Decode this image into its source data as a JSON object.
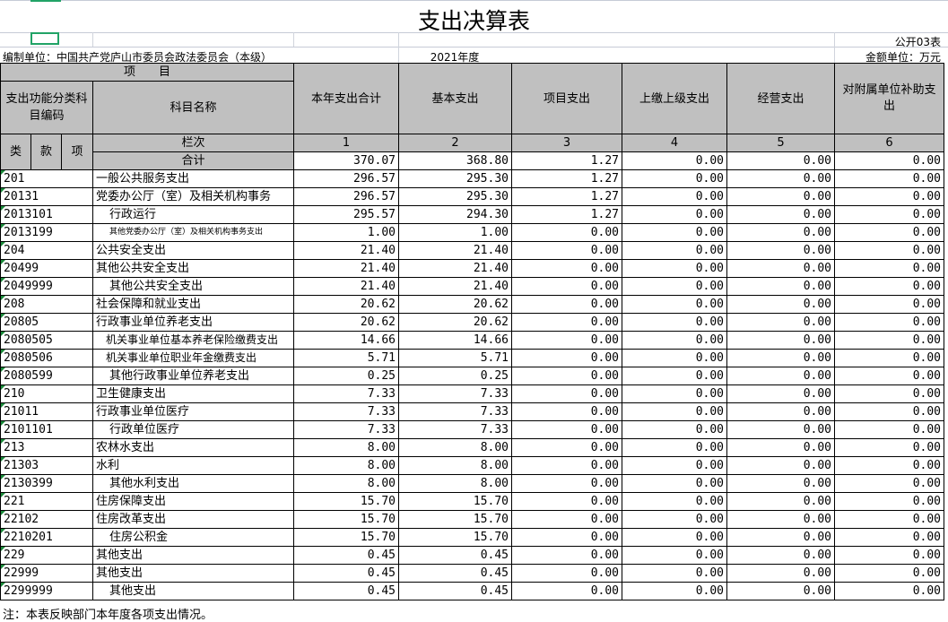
{
  "title": "支出决算表",
  "form_no": "公开03表",
  "unit": "编制单位：中国共产党庐山市委员会政法委员会（本级）",
  "year": "2021年度",
  "currency": "金额单位：万元",
  "headers": {
    "item": "项　　目",
    "code": "支出功能分类科目编码",
    "name": "科目名称",
    "cols": [
      "本年支出合计",
      "基本支出",
      "项目支出",
      "上缴上级支出",
      "经营支出",
      "对附属单位补助支出"
    ],
    "lei": "类",
    "kuan": "款",
    "xiang": "项",
    "lanci": "栏次",
    "col_nums": [
      "1",
      "2",
      "3",
      "4",
      "5",
      "6"
    ],
    "total": "合计"
  },
  "total_values": [
    "370.07",
    "368.80",
    "1.27",
    "0.00",
    "0.00",
    "0.00"
  ],
  "rows": [
    {
      "code": "201",
      "name": "一般公共服务支出",
      "indent": 0,
      "v": [
        "296.57",
        "295.30",
        "1.27",
        "0.00",
        "0.00",
        "0.00"
      ]
    },
    {
      "code": "20131",
      "name": "党委办公厅（室）及相关机构事务",
      "indent": 0,
      "v": [
        "296.57",
        "295.30",
        "1.27",
        "0.00",
        "0.00",
        "0.00"
      ]
    },
    {
      "code": "2013101",
      "name": "行政运行",
      "indent": 1,
      "v": [
        "295.57",
        "294.30",
        "1.27",
        "0.00",
        "0.00",
        "0.00"
      ]
    },
    {
      "code": "2013199",
      "name": "其他党委办公厅（室）及相关机构事务支出",
      "indent": 2,
      "v": [
        "1.00",
        "1.00",
        "0.00",
        "0.00",
        "0.00",
        "0.00"
      ]
    },
    {
      "code": "204",
      "name": "公共安全支出",
      "indent": 0,
      "v": [
        "21.40",
        "21.40",
        "0.00",
        "0.00",
        "0.00",
        "0.00"
      ]
    },
    {
      "code": "20499",
      "name": "其他公共安全支出",
      "indent": 0,
      "v": [
        "21.40",
        "21.40",
        "0.00",
        "0.00",
        "0.00",
        "0.00"
      ]
    },
    {
      "code": "2049999",
      "name": "其他公共安全支出",
      "indent": 1,
      "v": [
        "21.40",
        "21.40",
        "0.00",
        "0.00",
        "0.00",
        "0.00"
      ]
    },
    {
      "code": "208",
      "name": "社会保障和就业支出",
      "indent": 0,
      "v": [
        "20.62",
        "20.62",
        "0.00",
        "0.00",
        "0.00",
        "0.00"
      ]
    },
    {
      "code": "20805",
      "name": "行政事业单位养老支出",
      "indent": 0,
      "v": [
        "20.62",
        "20.62",
        "0.00",
        "0.00",
        "0.00",
        "0.00"
      ]
    },
    {
      "code": "2080505",
      "name": "机关事业单位基本养老保险缴费支出",
      "indent": 3,
      "v": [
        "14.66",
        "14.66",
        "0.00",
        "0.00",
        "0.00",
        "0.00"
      ]
    },
    {
      "code": "2080506",
      "name": "机关事业单位职业年金缴费支出",
      "indent": 3,
      "v": [
        "5.71",
        "5.71",
        "0.00",
        "0.00",
        "0.00",
        "0.00"
      ]
    },
    {
      "code": "2080599",
      "name": "其他行政事业单位养老支出",
      "indent": 1,
      "v": [
        "0.25",
        "0.25",
        "0.00",
        "0.00",
        "0.00",
        "0.00"
      ]
    },
    {
      "code": "210",
      "name": "卫生健康支出",
      "indent": 0,
      "v": [
        "7.33",
        "7.33",
        "0.00",
        "0.00",
        "0.00",
        "0.00"
      ]
    },
    {
      "code": "21011",
      "name": "行政事业单位医疗",
      "indent": 0,
      "v": [
        "7.33",
        "7.33",
        "0.00",
        "0.00",
        "0.00",
        "0.00"
      ]
    },
    {
      "code": "2101101",
      "name": "行政单位医疗",
      "indent": 1,
      "v": [
        "7.33",
        "7.33",
        "0.00",
        "0.00",
        "0.00",
        "0.00"
      ]
    },
    {
      "code": "213",
      "name": "农林水支出",
      "indent": 0,
      "v": [
        "8.00",
        "8.00",
        "0.00",
        "0.00",
        "0.00",
        "0.00"
      ]
    },
    {
      "code": "21303",
      "name": "水利",
      "indent": 0,
      "v": [
        "8.00",
        "8.00",
        "0.00",
        "0.00",
        "0.00",
        "0.00"
      ]
    },
    {
      "code": "2130399",
      "name": "其他水利支出",
      "indent": 1,
      "v": [
        "8.00",
        "8.00",
        "0.00",
        "0.00",
        "0.00",
        "0.00"
      ]
    },
    {
      "code": "221",
      "name": "住房保障支出",
      "indent": 0,
      "v": [
        "15.70",
        "15.70",
        "0.00",
        "0.00",
        "0.00",
        "0.00"
      ]
    },
    {
      "code": "22102",
      "name": "住房改革支出",
      "indent": 0,
      "v": [
        "15.70",
        "15.70",
        "0.00",
        "0.00",
        "0.00",
        "0.00"
      ]
    },
    {
      "code": "2210201",
      "name": "住房公积金",
      "indent": 1,
      "v": [
        "15.70",
        "15.70",
        "0.00",
        "0.00",
        "0.00",
        "0.00"
      ]
    },
    {
      "code": "229",
      "name": "其他支出",
      "indent": 0,
      "v": [
        "0.45",
        "0.45",
        "0.00",
        "0.00",
        "0.00",
        "0.00"
      ]
    },
    {
      "code": "22999",
      "name": "其他支出",
      "indent": 0,
      "v": [
        "0.45",
        "0.45",
        "0.00",
        "0.00",
        "0.00",
        "0.00"
      ]
    },
    {
      "code": "2299999",
      "name": "其他支出",
      "indent": 1,
      "v": [
        "0.45",
        "0.45",
        "0.00",
        "0.00",
        "0.00",
        "0.00"
      ]
    }
  ],
  "note": "注：本表反映部门本年度各项支出情况。"
}
